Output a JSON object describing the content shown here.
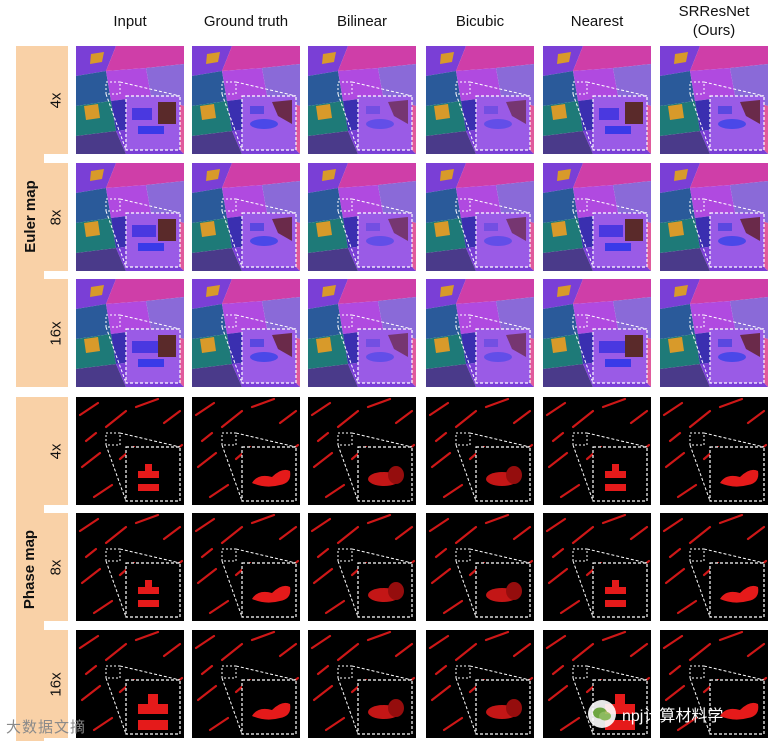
{
  "columns": [
    "Input",
    "Ground truth",
    "Bilinear",
    "Bicubic",
    "Nearest",
    "SRResNet\n(Ours)"
  ],
  "sections": [
    {
      "label": "Euler map",
      "kind": "euler",
      "rows": [
        "4x",
        "8x",
        "16x"
      ]
    },
    {
      "label": "Phase map",
      "kind": "phase",
      "rows": [
        "4x",
        "8x",
        "16x"
      ]
    }
  ],
  "colors": {
    "section_bg": "#f9d1a7",
    "euler_palette": [
      "#7a3fd6",
      "#b04ae0",
      "#3a2fb0",
      "#cf3ea8",
      "#2a5a9a",
      "#1e7a78",
      "#e05a9c",
      "#8a6ad8",
      "#d89a2a",
      "#4a3a8a"
    ],
    "phase_fg": "#e51a1a",
    "phase_bg": "#000000"
  },
  "watermarks": {
    "left": "大数据文摘",
    "right": "npj计算材料学"
  }
}
